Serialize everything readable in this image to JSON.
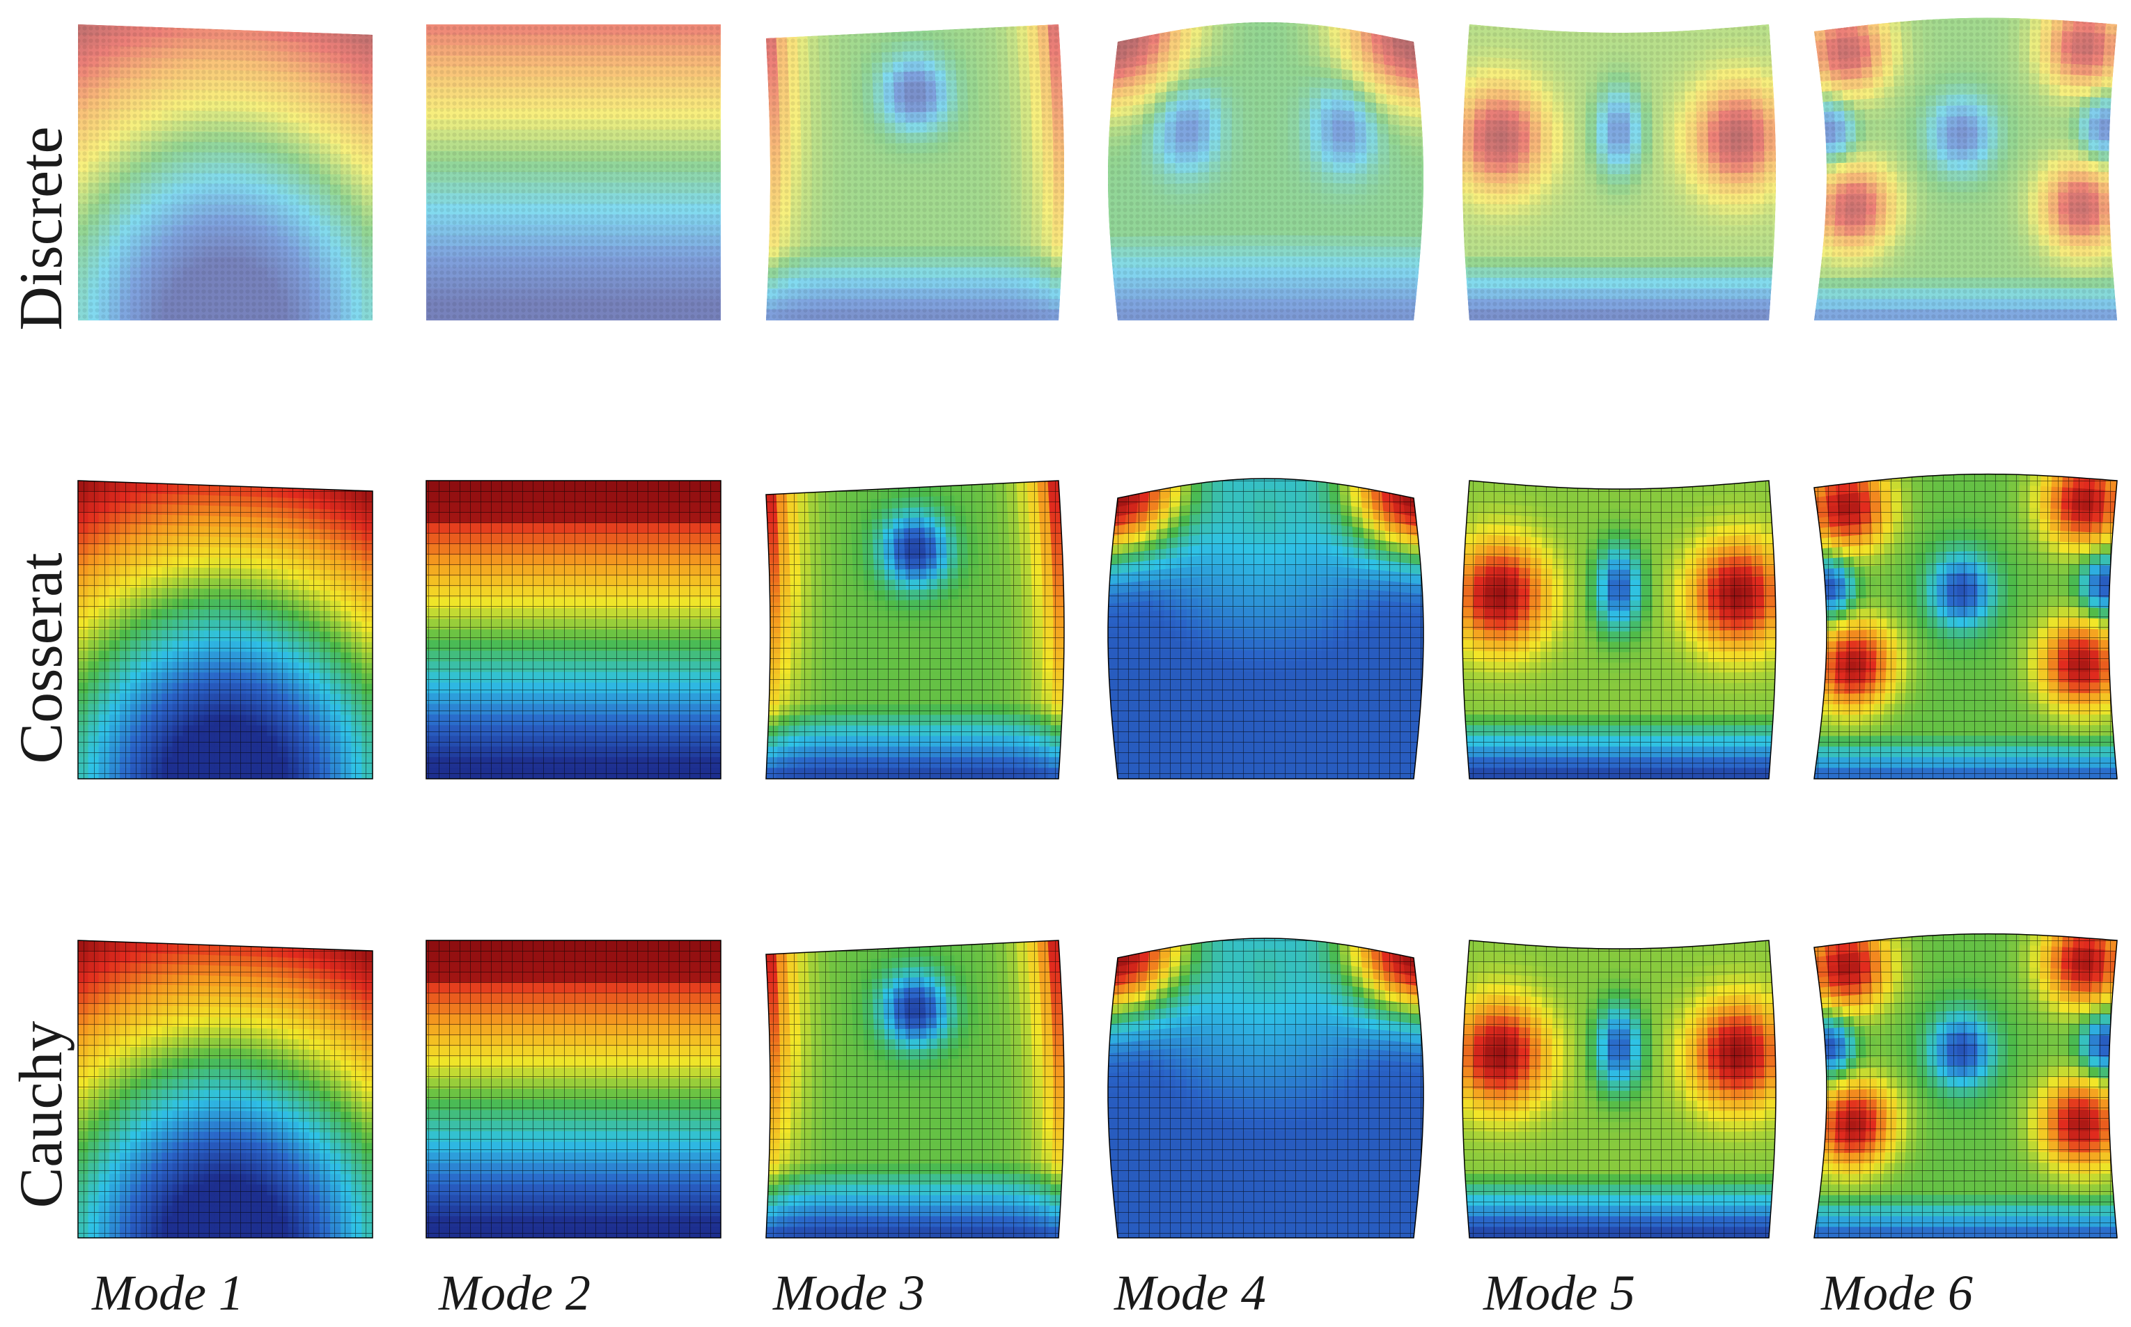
{
  "rows": [
    {
      "key": "discrete",
      "label": "Discrete",
      "mesh": "lattice"
    },
    {
      "key": "cosserat",
      "label": "Cosserat",
      "mesh": "grid"
    },
    {
      "key": "cauchy",
      "label": "Cauchy",
      "mesh": "grid"
    }
  ],
  "columns": [
    {
      "key": "mode1",
      "label": "Mode 1"
    },
    {
      "key": "mode2",
      "label": "Mode 2"
    },
    {
      "key": "mode3",
      "label": "Mode 3"
    },
    {
      "key": "mode4",
      "label": "Mode 4"
    },
    {
      "key": "mode5",
      "label": "Mode 5"
    },
    {
      "key": "mode6",
      "label": "Mode 6"
    }
  ],
  "colormap": [
    "#1d2f8f",
    "#2a64c8",
    "#2fc2e6",
    "#4cba4a",
    "#f2e628",
    "#f59a1f",
    "#e12b1e",
    "#8e0e10"
  ]
}
